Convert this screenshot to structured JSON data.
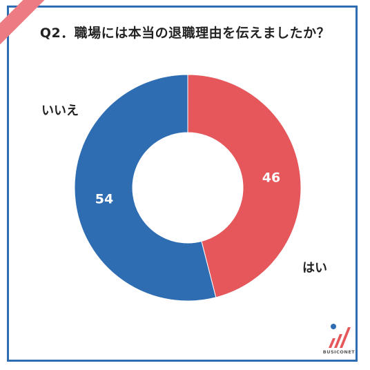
{
  "chart_data": {
    "type": "pie",
    "title": "Q2．職場には本当の退職理由を伝えましたか？",
    "categories": [
      "はい",
      "いいえ"
    ],
    "values": [
      46,
      54
    ],
    "data_labels": [
      "46",
      "54"
    ],
    "colors": [
      "#e5575b",
      "#2f6db3"
    ],
    "donut": true
  },
  "logo": {
    "text": "BUSICONET"
  }
}
